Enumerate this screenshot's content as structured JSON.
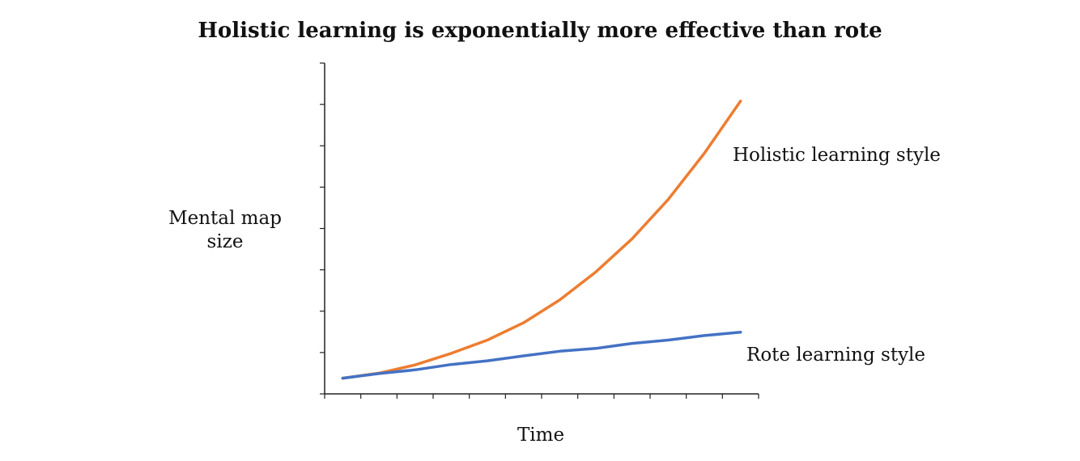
{
  "chart_data": {
    "type": "line",
    "title": "Holistic learning is exponentially more effective than rote",
    "xlabel": "Time",
    "ylabel_lines": [
      "Mental map",
      "size"
    ],
    "x": [
      0,
      1,
      2,
      3,
      4,
      5,
      6,
      7,
      8,
      9,
      10,
      11
    ],
    "xlim": [
      -0.5,
      11.5
    ],
    "ylim": [
      0,
      8
    ],
    "x_tick_count": 13,
    "y_tick_count": 9,
    "grid": false,
    "legend": "inline-labels",
    "series": [
      {
        "name": "Holistic learning style",
        "color": "#ED7D31",
        "values": [
          0.38,
          0.5,
          0.7,
          0.98,
          1.3,
          1.72,
          2.27,
          2.95,
          3.75,
          4.7,
          5.82,
          7.08
        ]
      },
      {
        "name": "Rote learning style",
        "color": "#4472C4",
        "values": [
          0.38,
          0.49,
          0.58,
          0.71,
          0.8,
          0.92,
          1.03,
          1.1,
          1.22,
          1.3,
          1.41,
          1.49
        ]
      }
    ]
  }
}
